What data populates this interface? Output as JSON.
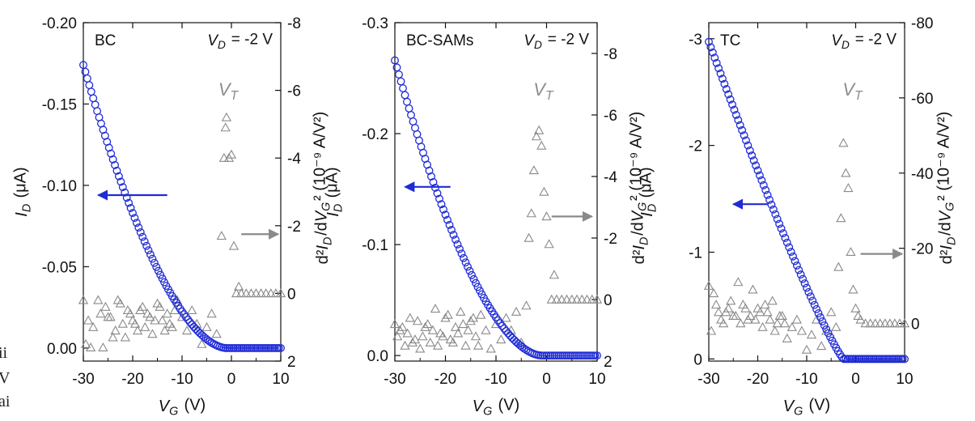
{
  "clipped_text": [
    "ii",
    "V",
    "ai"
  ],
  "colors": {
    "blue": "#1f2bd6",
    "gray": "#8a8a8a",
    "axis": "#111111"
  },
  "chart_data": [
    {
      "type": "scatter",
      "label": "BC",
      "annotation": "V_D = -2 V",
      "vt_label": "V_T",
      "xlabel": "V_G (V)",
      "ylabel_left": "I_D (μA)",
      "ylabel_right": "d²I_D/dV_G² (10⁻⁹ A/V²)",
      "xlim": [
        -30,
        10
      ],
      "ylim_left": [
        0.008,
        -0.2
      ],
      "ylim_right": [
        2.0,
        -8.0
      ],
      "x_ticks": [
        "-30",
        "-20",
        "-10",
        "0",
        "10"
      ],
      "y_ticks_left": [
        "-0.20",
        "-0.15",
        "-0.10",
        "-0.05",
        "0.00"
      ],
      "y_ticks_right": [
        "-8",
        "-6",
        "-4",
        "-2",
        "0",
        "2"
      ],
      "id_curve": {
        "v0": -1,
        "a": -0.174,
        "p": 1.75,
        "start": -30,
        "end": 10,
        "step": 0.4
      },
      "d2_points": [
        [
          -30,
          0.2
        ],
        [
          -29.5,
          1.5
        ],
        [
          -29,
          0.8
        ],
        [
          -28.5,
          1.6
        ],
        [
          -28,
          1.0
        ],
        [
          -27,
          0.2
        ],
        [
          -26,
          1.6
        ],
        [
          -25,
          0.7
        ],
        [
          -24,
          1.3
        ],
        [
          -23,
          0.2
        ],
        [
          -22,
          0.9
        ],
        [
          -21,
          0.5
        ],
        [
          -20,
          0.8
        ],
        [
          -19,
          1.1
        ],
        [
          -18,
          0.4
        ],
        [
          -17,
          0.6
        ],
        [
          -16,
          1.2
        ],
        [
          -15,
          0.3
        ],
        [
          -14,
          0.8
        ],
        [
          -13,
          0.6
        ],
        [
          -12,
          1.0
        ],
        [
          -11,
          0.2
        ],
        [
          -10,
          0.7
        ],
        [
          -9,
          1.1
        ],
        [
          -8,
          0.5
        ],
        [
          -7,
          0.9
        ],
        [
          -6,
          1.5
        ],
        [
          -5,
          1.0
        ],
        [
          -4,
          0.6
        ],
        [
          -3,
          1.2
        ],
        [
          -2,
          -1.7
        ],
        [
          -1.5,
          -4.0
        ],
        [
          -1.2,
          -4.9
        ],
        [
          -1.0,
          -5.2
        ],
        [
          -0.5,
          -4.0
        ],
        [
          0,
          -4.1
        ],
        [
          0.5,
          -1.4
        ],
        [
          1,
          0.0
        ],
        [
          1.5,
          -0.2
        ],
        [
          2,
          0.0
        ],
        [
          3,
          0.0
        ],
        [
          4,
          0.0
        ],
        [
          5,
          0.0
        ],
        [
          6,
          0.0
        ],
        [
          7,
          0.0
        ],
        [
          8,
          0.0
        ],
        [
          9,
          0.0
        ],
        [
          10,
          0.0
        ],
        [
          -26.5,
          0.6
        ],
        [
          -25.5,
          0.4
        ],
        [
          -24.5,
          0.7
        ],
        [
          -23.5,
          1.1
        ],
        [
          -22.5,
          0.3
        ],
        [
          -21.5,
          1.3
        ],
        [
          -20.5,
          0.6
        ],
        [
          -19.5,
          0.9
        ],
        [
          -18.5,
          0.5
        ],
        [
          -17.5,
          1.0
        ],
        [
          -16.5,
          0.7
        ],
        [
          -15.5,
          0.8
        ],
        [
          -14.5,
          0.4
        ],
        [
          -13.5,
          1.1
        ],
        [
          -12.5,
          0.9
        ],
        [
          -11.5,
          0.5
        ]
      ],
      "blue_arrow": {
        "from": -13,
        "to": -27,
        "y": -0.094
      },
      "gray_arrow": {
        "from": 2,
        "to": 9.5,
        "y": -1.75
      }
    },
    {
      "type": "scatter",
      "label": "BC-SAMs",
      "annotation": "V_D = -2 V",
      "vt_label": "V_T",
      "xlabel": "V_G (V)",
      "ylabel_left": "I_D (μA)",
      "ylabel_right": "d²I_D/dV_G² (10⁻⁹ A/V²)",
      "xlim": [
        -30,
        10
      ],
      "ylim_left": [
        0.005,
        -0.3
      ],
      "ylim_right": [
        2.0,
        -9.0
      ],
      "x_ticks": [
        "-30",
        "-20",
        "-10",
        "0",
        "10"
      ],
      "y_ticks_left": [
        "-0.3",
        "-0.2",
        "-0.1",
        "0.0"
      ],
      "y_ticks_right": [
        "-8",
        "-6",
        "-4",
        "-2",
        "0",
        "2"
      ],
      "id_curve": {
        "v0": -1,
        "a": -0.266,
        "p": 1.75,
        "start": -30,
        "end": 10,
        "step": 0.4
      },
      "d2_points": [
        [
          -30,
          0.8
        ],
        [
          -29.5,
          1.2
        ],
        [
          -29,
          1.0
        ],
        [
          -28,
          1.5
        ],
        [
          -27,
          0.6
        ],
        [
          -26,
          1.3
        ],
        [
          -25,
          1.6
        ],
        [
          -24,
          0.9
        ],
        [
          -23,
          1.4
        ],
        [
          -22,
          0.3
        ],
        [
          -21,
          1.1
        ],
        [
          -20,
          0.6
        ],
        [
          -19,
          1.3
        ],
        [
          -18,
          0.9
        ],
        [
          -17,
          0.4
        ],
        [
          -16,
          1.5
        ],
        [
          -15,
          0.7
        ],
        [
          -14,
          1.2
        ],
        [
          -13,
          0.5
        ],
        [
          -12,
          1.0
        ],
        [
          -11,
          1.6
        ],
        [
          -10,
          0.8
        ],
        [
          -9,
          1.3
        ],
        [
          -8,
          0.6
        ],
        [
          -7,
          1.0
        ],
        [
          -6,
          0.4
        ],
        [
          -5,
          1.4
        ],
        [
          -4,
          0.2
        ],
        [
          -3.5,
          -2.0
        ],
        [
          -3,
          -2.8
        ],
        [
          -2.5,
          -4.2
        ],
        [
          -2,
          -5.3
        ],
        [
          -1.5,
          -5.5
        ],
        [
          -1,
          -5.0
        ],
        [
          -0.5,
          -3.5
        ],
        [
          0,
          -2.7
        ],
        [
          0.5,
          -1.8
        ],
        [
          1,
          0.0
        ],
        [
          1.5,
          -0.8
        ],
        [
          2,
          0.0
        ],
        [
          3,
          0.0
        ],
        [
          4,
          0.0
        ],
        [
          5,
          0.0
        ],
        [
          6,
          0.0
        ],
        [
          7,
          0.0
        ],
        [
          8,
          0.0
        ],
        [
          9,
          0.0
        ],
        [
          10,
          0.0
        ],
        [
          -28.5,
          0.9
        ],
        [
          -27.5,
          1.1
        ],
        [
          -26.5,
          1.4
        ],
        [
          -25.5,
          0.7
        ],
        [
          -24.5,
          1.2
        ],
        [
          -23.5,
          0.8
        ],
        [
          -22.5,
          1.0
        ],
        [
          -21.5,
          1.5
        ],
        [
          -20.5,
          1.2
        ],
        [
          -19.5,
          0.5
        ],
        [
          -18.5,
          1.4
        ],
        [
          -17.5,
          1.1
        ],
        [
          -16.5,
          0.8
        ],
        [
          -15.5,
          1.0
        ],
        [
          -14.5,
          0.6
        ],
        [
          -13.5,
          1.5
        ]
      ],
      "blue_arrow": {
        "from": -19,
        "to": -28,
        "y": -0.152
      },
      "gray_arrow": {
        "from": 1,
        "to": 9,
        "y": -2.7
      }
    },
    {
      "type": "scatter",
      "label": "TC",
      "annotation": "V_D = -2 V",
      "vt_label": "V_T",
      "xlabel": "V_G (V)",
      "ylabel_left": "I_D (μA)",
      "ylabel_right": "d²I_D/dV_G² (10⁻⁹ A/V²)",
      "xlim": [
        -30,
        10
      ],
      "ylim_left": [
        0.02,
        -3.15
      ],
      "ylim_right": [
        10,
        -80
      ],
      "x_ticks": [
        "-30",
        "-20",
        "-10",
        "0",
        "10"
      ],
      "y_ticks_left": [
        "-3",
        "-2",
        "-1",
        "0"
      ],
      "y_ticks_right": [
        "-80",
        "-60",
        "-40",
        "-20",
        "0"
      ],
      "id_curve": {
        "v0": -2.5,
        "a": -2.97,
        "p": 1.15,
        "start": -30,
        "end": 10,
        "step": 0.4
      },
      "d2_points": [
        [
          -30,
          -10
        ],
        [
          -29.5,
          2
        ],
        [
          -29,
          -8
        ],
        [
          -28,
          -3
        ],
        [
          -27,
          0
        ],
        [
          -26,
          -4
        ],
        [
          -25,
          -2
        ],
        [
          -24,
          -11
        ],
        [
          -23,
          -5
        ],
        [
          -22,
          -1
        ],
        [
          -21,
          -9
        ],
        [
          -20,
          -4
        ],
        [
          -19,
          1
        ],
        [
          -18,
          -3
        ],
        [
          -17,
          -6
        ],
        [
          -16,
          0
        ],
        [
          -15,
          -2
        ],
        [
          -14,
          4
        ],
        [
          -13,
          1
        ],
        [
          -12,
          -1
        ],
        [
          -11,
          2
        ],
        [
          -10,
          7
        ],
        [
          -9,
          3
        ],
        [
          -8,
          -1
        ],
        [
          -7,
          6
        ],
        [
          -6,
          2
        ],
        [
          -5,
          -3
        ],
        [
          -4,
          1
        ],
        [
          -3.5,
          -15
        ],
        [
          -3,
          -28
        ],
        [
          -2.5,
          -48
        ],
        [
          -2,
          -40
        ],
        [
          -1.5,
          -36
        ],
        [
          -1,
          -19
        ],
        [
          -0.5,
          -9
        ],
        [
          0,
          -4
        ],
        [
          0.5,
          -2
        ],
        [
          1,
          -1
        ],
        [
          2,
          0
        ],
        [
          3,
          0
        ],
        [
          4,
          0
        ],
        [
          5,
          0
        ],
        [
          6,
          0
        ],
        [
          7,
          0
        ],
        [
          8,
          0
        ],
        [
          9,
          0
        ],
        [
          10,
          0
        ],
        [
          -28.5,
          -5
        ],
        [
          -27.5,
          -1
        ],
        [
          -26.5,
          -3
        ],
        [
          -25.5,
          -6
        ],
        [
          -24.5,
          -2
        ],
        [
          -23.5,
          0
        ],
        [
          -22.5,
          -4
        ],
        [
          -21.5,
          -2
        ],
        [
          -20.5,
          -1
        ],
        [
          -19.5,
          -3
        ],
        [
          -18.5,
          -5
        ],
        [
          -17.5,
          -1
        ],
        [
          -16.5,
          2
        ],
        [
          -15.5,
          -2
        ],
        [
          -14.5,
          0
        ]
      ],
      "blue_arrow": {
        "from": -18,
        "to": -25,
        "y": -1.45
      },
      "gray_arrow": {
        "from": 1,
        "to": 9.5,
        "y": -18.5
      }
    }
  ]
}
